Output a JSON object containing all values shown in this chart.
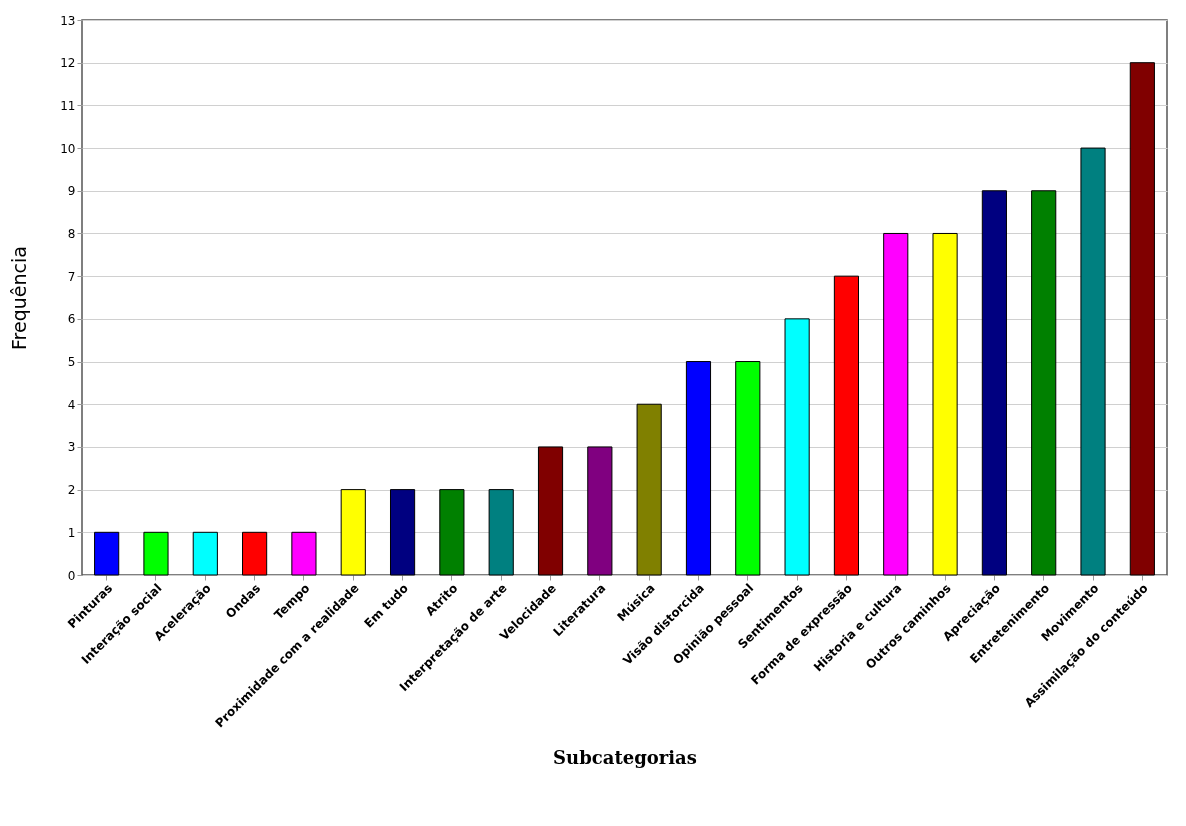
{
  "chart_data": {
    "type": "bar",
    "xlabel": "Subcategorias",
    "ylabel": "Frequência",
    "categories": [
      "Pinturas",
      "Interação social",
      "Aceleração",
      "Ondas",
      "Tempo",
      "Proximidade com a realidade",
      "Em tudo",
      "Atrito",
      "Interpretação de arte",
      "Velocidade",
      "Literatura",
      "Música",
      "Visão distorcida",
      "Opinião pessoal",
      "Sentimentos",
      "Forma de expressão",
      "Historia e cultura",
      "Outros caminhos",
      "Apreciação",
      "Entretenimento",
      "Movimento",
      "Assimilação do conteúdo"
    ],
    "values": [
      1,
      1,
      1,
      1,
      1,
      2,
      2,
      2,
      2,
      3,
      3,
      4,
      5,
      5,
      6,
      7,
      8,
      8,
      9,
      9,
      10,
      12
    ],
    "colors": [
      "#0000ff",
      "#00ff00",
      "#00ffff",
      "#ff0000",
      "#ff00ff",
      "#ffff00",
      "#000080",
      "#008000",
      "#008080",
      "#800000",
      "#800080",
      "#808000",
      "#0000ff",
      "#00ff00",
      "#00ffff",
      "#ff0000",
      "#ff00ff",
      "#ffff00",
      "#000080",
      "#008000",
      "#008080",
      "#800000"
    ],
    "ylim": [
      0,
      13
    ],
    "yticks": [
      0,
      1,
      2,
      3,
      4,
      5,
      6,
      7,
      8,
      9,
      10,
      11,
      12,
      13
    ],
    "grid": "y",
    "legend": false
  }
}
